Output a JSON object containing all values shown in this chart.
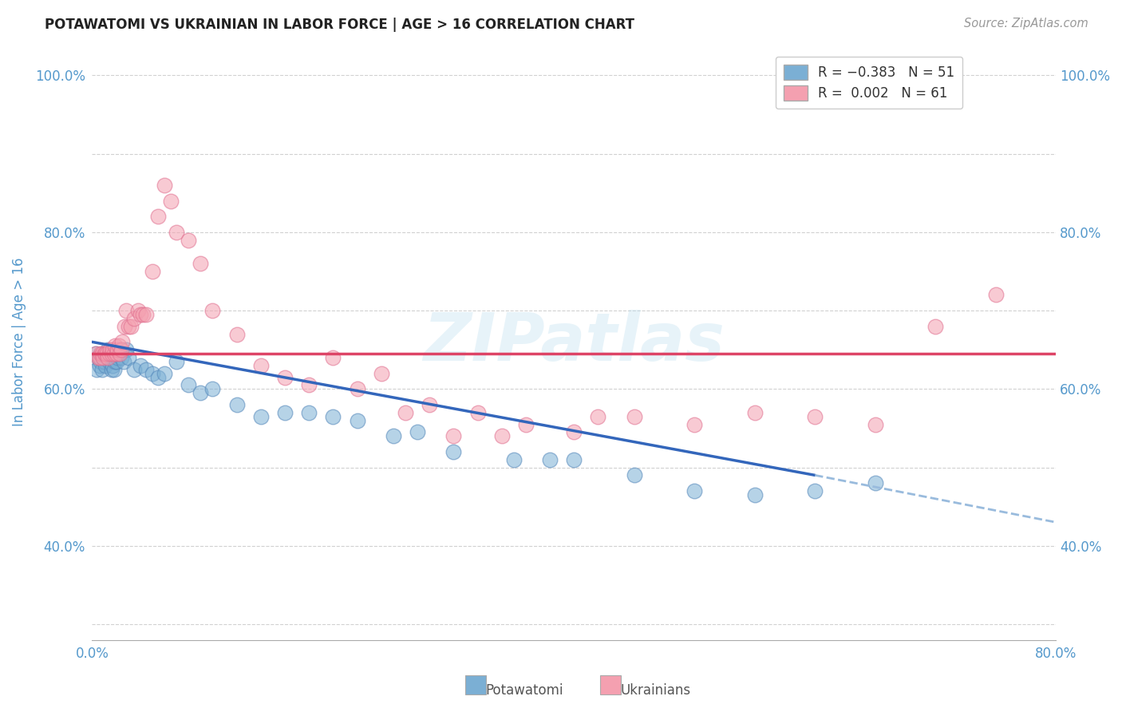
{
  "title": "POTAWATOMI VS UKRAINIAN IN LABOR FORCE | AGE > 16 CORRELATION CHART",
  "source": "Source: ZipAtlas.com",
  "ylabel": "In Labor Force | Age > 16",
  "potawatomi_R": -0.383,
  "potawatomi_N": 51,
  "ukrainian_R": 0.002,
  "ukrainian_N": 61,
  "potawatomi_color": "#7BAFD4",
  "ukrainian_color": "#F4A0B0",
  "potawatomi_edge_color": "#5588BB",
  "ukrainian_edge_color": "#E07090",
  "background_color": "#FFFFFF",
  "grid_color": "#CCCCCC",
  "title_color": "#222222",
  "axis_label_color": "#5599CC",
  "blue_line_color": "#3366BB",
  "pink_line_color": "#DD4466",
  "dashed_line_color": "#99BBDD",
  "watermark_color": "#BBDDEE",
  "watermark": "ZIPatlas",
  "xlim": [
    0.0,
    0.8
  ],
  "ylim": [
    0.28,
    1.04
  ],
  "x_tick_positions": [
    0.0,
    0.1,
    0.2,
    0.3,
    0.4,
    0.5,
    0.6,
    0.7,
    0.8
  ],
  "x_tick_labels": [
    "0.0%",
    "",
    "",
    "",
    "",
    "",
    "",
    "",
    "80.0%"
  ],
  "y_tick_positions": [
    0.3,
    0.4,
    0.5,
    0.6,
    0.7,
    0.8,
    0.9,
    1.0
  ],
  "y_tick_labels": [
    "",
    "40.0%",
    "",
    "60.0%",
    "",
    "80.0%",
    "",
    "100.0%"
  ],
  "pot_x": [
    0.003,
    0.004,
    0.005,
    0.006,
    0.007,
    0.008,
    0.009,
    0.01,
    0.011,
    0.012,
    0.013,
    0.014,
    0.015,
    0.016,
    0.017,
    0.018,
    0.019,
    0.02,
    0.021,
    0.022,
    0.024,
    0.026,
    0.028,
    0.03,
    0.035,
    0.04,
    0.045,
    0.05,
    0.055,
    0.06,
    0.07,
    0.08,
    0.09,
    0.1,
    0.12,
    0.14,
    0.16,
    0.18,
    0.2,
    0.22,
    0.25,
    0.27,
    0.3,
    0.35,
    0.38,
    0.4,
    0.45,
    0.5,
    0.55,
    0.6,
    0.65
  ],
  "pot_y": [
    0.645,
    0.625,
    0.64,
    0.63,
    0.635,
    0.625,
    0.64,
    0.635,
    0.63,
    0.64,
    0.65,
    0.635,
    0.64,
    0.625,
    0.63,
    0.625,
    0.635,
    0.635,
    0.64,
    0.645,
    0.64,
    0.635,
    0.65,
    0.64,
    0.625,
    0.63,
    0.625,
    0.62,
    0.615,
    0.62,
    0.635,
    0.605,
    0.595,
    0.6,
    0.58,
    0.565,
    0.57,
    0.57,
    0.565,
    0.56,
    0.54,
    0.545,
    0.52,
    0.51,
    0.51,
    0.51,
    0.49,
    0.47,
    0.465,
    0.47,
    0.48
  ],
  "ukr_x": [
    0.003,
    0.005,
    0.006,
    0.007,
    0.008,
    0.009,
    0.01,
    0.011,
    0.012,
    0.013,
    0.014,
    0.015,
    0.016,
    0.017,
    0.018,
    0.019,
    0.02,
    0.021,
    0.022,
    0.023,
    0.024,
    0.025,
    0.027,
    0.028,
    0.03,
    0.032,
    0.035,
    0.038,
    0.04,
    0.042,
    0.045,
    0.05,
    0.055,
    0.06,
    0.065,
    0.07,
    0.08,
    0.09,
    0.1,
    0.12,
    0.14,
    0.16,
    0.18,
    0.2,
    0.22,
    0.24,
    0.26,
    0.28,
    0.3,
    0.32,
    0.34,
    0.36,
    0.4,
    0.42,
    0.45,
    0.5,
    0.55,
    0.6,
    0.65,
    0.7,
    0.75
  ],
  "ukr_y": [
    0.645,
    0.64,
    0.64,
    0.645,
    0.645,
    0.64,
    0.645,
    0.645,
    0.645,
    0.64,
    0.645,
    0.65,
    0.645,
    0.65,
    0.645,
    0.655,
    0.645,
    0.65,
    0.655,
    0.645,
    0.65,
    0.66,
    0.68,
    0.7,
    0.68,
    0.68,
    0.69,
    0.7,
    0.695,
    0.695,
    0.695,
    0.75,
    0.82,
    0.86,
    0.84,
    0.8,
    0.79,
    0.76,
    0.7,
    0.67,
    0.63,
    0.615,
    0.605,
    0.64,
    0.6,
    0.62,
    0.57,
    0.58,
    0.54,
    0.57,
    0.54,
    0.555,
    0.545,
    0.565,
    0.565,
    0.555,
    0.57,
    0.565,
    0.555,
    0.68,
    0.72
  ],
  "pot_line_x_start": 0.0,
  "pot_line_x_solid_end": 0.6,
  "pot_line_x_dashed_end": 0.8,
  "pot_line_y_at_start": 0.66,
  "pot_line_y_at_solid_end": 0.49,
  "pot_line_y_at_dashed_end": 0.43,
  "ukr_line_y": 0.645
}
